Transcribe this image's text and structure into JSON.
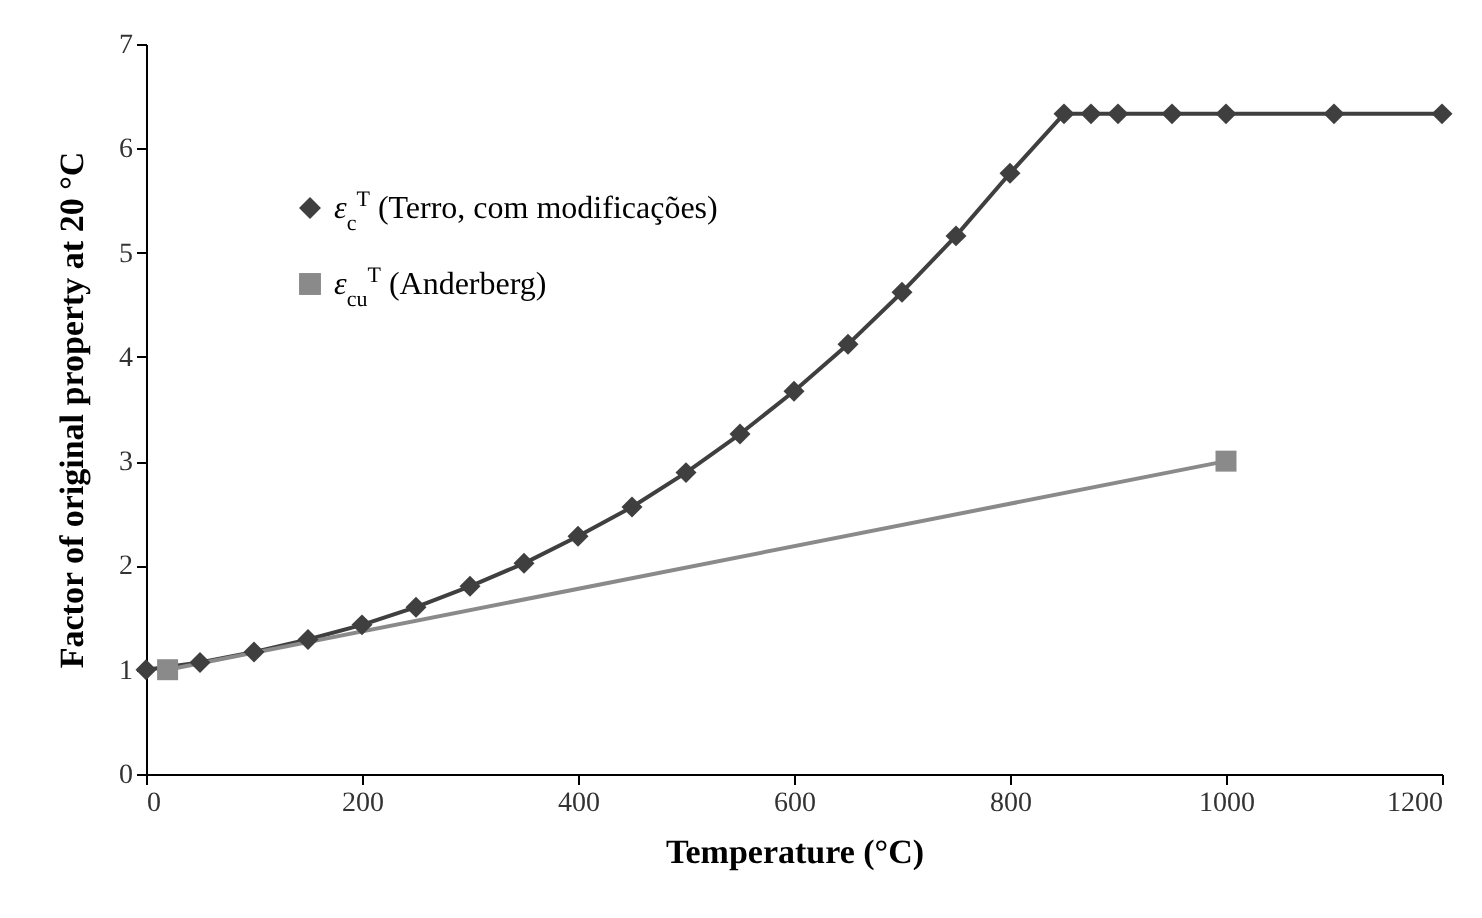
{
  "chart_data": {
    "type": "line",
    "xlabel": "Temperature (°C)",
    "ylabel": "Factor of original property at 20 °C",
    "xlim": [
      0,
      1200
    ],
    "xticks": [
      0,
      200,
      400,
      600,
      800,
      1000,
      1200
    ],
    "ylim": [
      0,
      7
    ],
    "yticks": [
      0,
      1,
      2,
      3,
      4,
      5,
      6,
      7
    ],
    "grid": false,
    "legend": "top left",
    "line_style": "solid",
    "series": [
      {
        "name": "ε$_{c}$$^{T}$ (Terro, com modificações)",
        "color": "#3f3f3f",
        "marker": "diamond",
        "x": [
          0,
          50,
          100,
          150,
          200,
          250,
          300,
          350,
          400,
          450,
          500,
          550,
          600,
          650,
          700,
          750,
          800,
          850,
          875,
          900,
          950,
          1000,
          1100,
          1200
        ],
        "values": [
          1,
          1.07,
          1.17,
          1.29,
          1.43,
          1.6,
          1.8,
          2.02,
          2.28,
          2.56,
          2.89,
          3.26,
          3.67,
          4.12,
          4.62,
          5.16,
          5.76,
          6.33,
          6.33,
          6.33,
          6.33,
          6.33,
          6.33,
          6.33
        ]
      },
      {
        "name": "ε$_{cu}$$^{T}$ (Anderberg)",
        "color": "#8a8a8a",
        "marker": "square",
        "x": [
          20,
          1000
        ],
        "values": [
          1,
          3
        ]
      }
    ]
  }
}
